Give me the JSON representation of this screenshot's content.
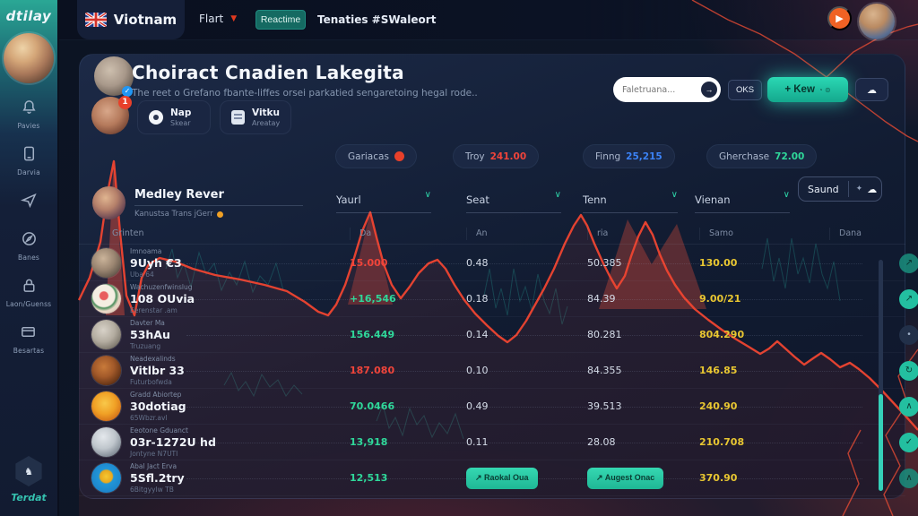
{
  "app": {
    "logo": "dtilay",
    "footer_brand": "Terdat"
  },
  "topbar": {
    "country": "Viotnam",
    "menu": "Flart",
    "live_button": "Reactime",
    "tagline": "Tenaties #SWaleort"
  },
  "sidebar": {
    "items": [
      {
        "label": "Pavies",
        "icon": "bell-icon"
      },
      {
        "label": "Darvia",
        "icon": "tablet-icon"
      },
      {
        "label": "",
        "icon": "send-icon"
      },
      {
        "label": "Banes",
        "icon": "compass-icon"
      },
      {
        "label": "Laon/Guenss",
        "icon": "lock-icon"
      },
      {
        "label": "Besartas",
        "icon": "card-icon"
      }
    ]
  },
  "header": {
    "title": "Choiract Cnadien Lakegita",
    "subtitle": "The reet o Grefano fbante-liffes orsei parkatied sengaretoing hegal rode..",
    "search_placeholder": "Faletruana...",
    "oks_button": "OKS",
    "new_button": "+ Kew",
    "badge": "1"
  },
  "actions": {
    "card1_title": "Nap",
    "card1_sub": "Skear",
    "card2_title": "Vitku",
    "card2_sub": "Areatay"
  },
  "stats": [
    {
      "label": "Gariacas",
      "value": "",
      "style": "dot"
    },
    {
      "label": "Troy",
      "value": "241.00",
      "style": "red"
    },
    {
      "label": "Finng",
      "value": "25,215",
      "style": "blue"
    },
    {
      "label": "Gherchase",
      "value": "72.00",
      "style": "green"
    }
  ],
  "filters": {
    "user_name": "Medley Rever",
    "user_meta": "Kanustsa Trans jGerr",
    "dropdowns": [
      "Yaurl",
      "Seat",
      "Tenn",
      "Vienan"
    ],
    "sound_button": "Saund"
  },
  "table": {
    "columns": [
      "Grinten",
      "Da",
      "An",
      "ria",
      "Samo",
      "Dana"
    ],
    "rows": [
      {
        "tag": "Imnoama",
        "name": "9Uyh €3",
        "sub": "Uba 64",
        "da": "15.000",
        "trend": "down",
        "an": "0.48",
        "ria": "50.385",
        "samo": "130.00",
        "action_icon": "arrow-up-icon",
        "action_glyph": "↗",
        "action_style": "dim"
      },
      {
        "tag": "Wachuzenfwinslug",
        "name": "108 OUvia",
        "sub": "Eerenstar .am",
        "da": "+16,546",
        "trend": "up",
        "an": "0.18",
        "ria": "84.39",
        "samo": "9.00/21",
        "action_icon": "arrow-up-icon",
        "action_glyph": "↗",
        "action_style": "teal"
      },
      {
        "tag": "Davter Ma",
        "name": "53hAu",
        "sub": "Truzuang",
        "da": "156.449",
        "trend": "up",
        "an": "0.14",
        "ria": "80.281",
        "samo": "804.290",
        "action_icon": "dot-icon",
        "action_glyph": "•",
        "action_style": "dark"
      },
      {
        "tag": "Neadexalinds",
        "name": "Vitlbr 33",
        "sub": "Futurbofwda",
        "da": "187.080",
        "trend": "down",
        "an": "0.10",
        "ria": "84.355",
        "samo": "146.85",
        "action_icon": "refresh-icon",
        "action_glyph": "↻",
        "action_style": "teal"
      },
      {
        "tag": "Gradd Abiortep",
        "name": "30dotiag",
        "sub": "65Wbzr.avl",
        "da": "70.0466",
        "trend": "up",
        "an": "0.49",
        "ria": "39.513",
        "samo": "240.90",
        "action_icon": "chevron-up-icon",
        "action_glyph": "∧",
        "action_style": "teal"
      },
      {
        "tag": "Eeotone Gduanct",
        "name": "03r-1272U hd",
        "sub": "Jontyne N7UTI",
        "da": "13,918",
        "trend": "up",
        "an": "0.11",
        "ria": "28.08",
        "samo": "210.708",
        "action_icon": "check-icon",
        "action_glyph": "✓",
        "action_style": "teal"
      },
      {
        "tag": "Abal Jact Erva",
        "name": "5Sfl.2try",
        "sub": "6Bitgyylw TB",
        "da": "12,513",
        "trend": "up",
        "an_button": "↗ Raokal Oua",
        "ria_button": "↗ Augest Onac",
        "samo": "370.90",
        "action_icon": "chevron-up-icon",
        "action_glyph": "∧",
        "action_style": "dim"
      }
    ]
  },
  "colors": {
    "accent_teal": "#2dd4a8",
    "alert_red": "#e8402a",
    "value_yellow": "#e8c631",
    "value_green": "#2fd89a",
    "value_blue": "#3b82f6",
    "panel_bg": "#16213b"
  }
}
